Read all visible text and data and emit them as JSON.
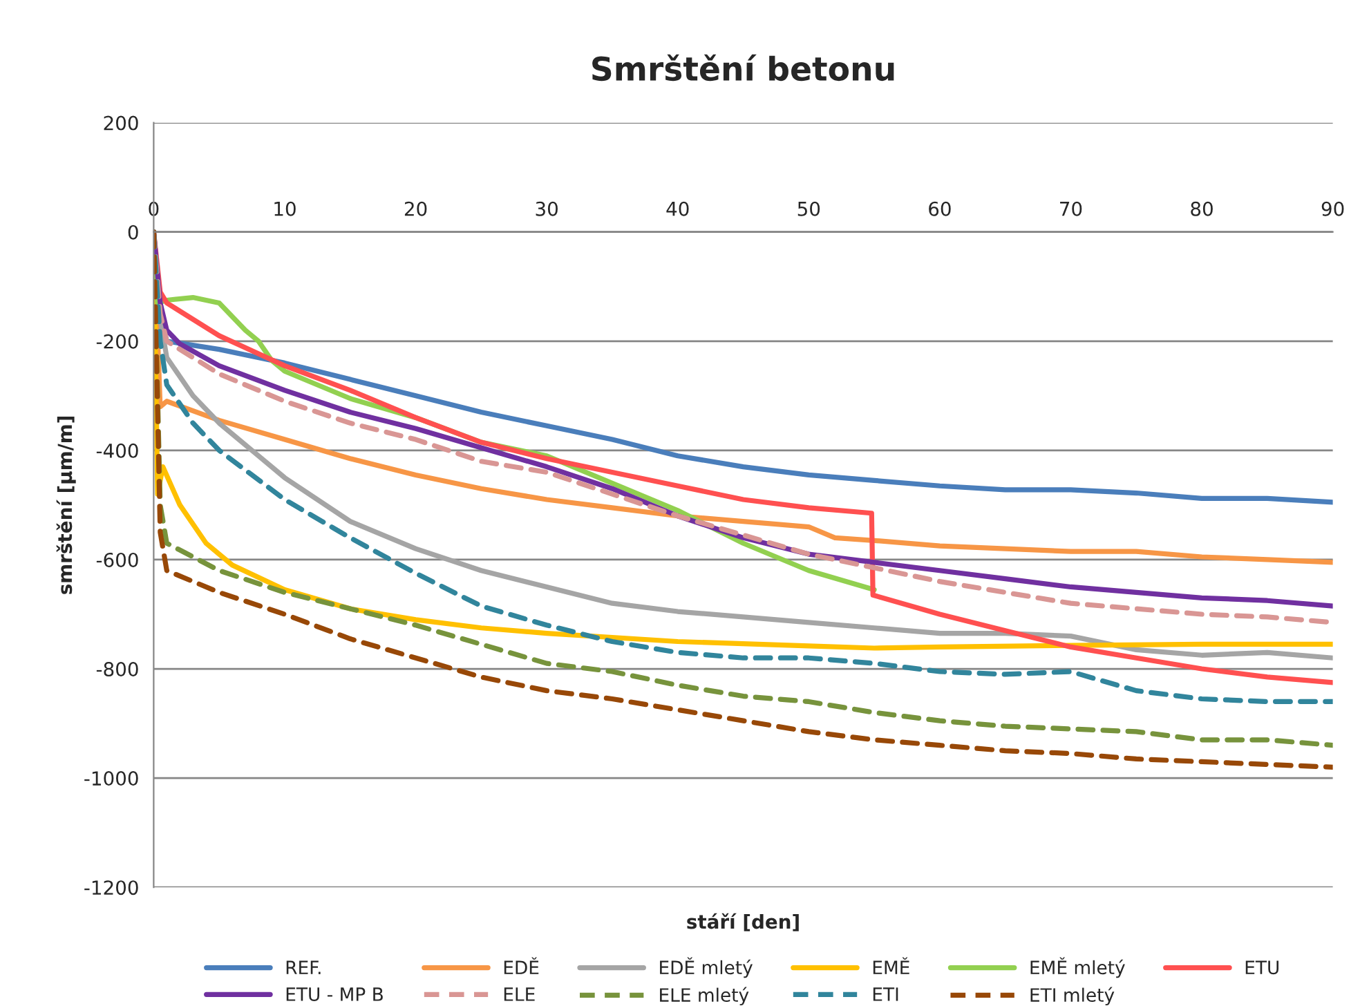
{
  "chart_data": {
    "type": "line",
    "title": "Smrštění betonu",
    "xlabel": "stáří [den]",
    "ylabel": "smrštění [µm/m]",
    "xlim": [
      0,
      90
    ],
    "xticks": [
      0,
      10,
      20,
      30,
      40,
      50,
      60,
      70,
      80,
      90
    ],
    "ylim": [
      -1200,
      200
    ],
    "yticks": [
      -1200,
      -1000,
      -800,
      -600,
      -400,
      -200,
      0,
      200
    ],
    "grid": "y",
    "legend": "bottom",
    "marker": "none",
    "series": [
      {
        "name": "REF.",
        "color": "#4a7ebb",
        "line_style": "solid",
        "x": [
          0,
          0.5,
          1,
          5,
          10,
          15,
          20,
          25,
          30,
          35,
          40,
          45,
          50,
          55,
          60,
          65,
          70,
          75,
          80,
          85,
          90
        ],
        "values": [
          0,
          -150,
          -200,
          -215,
          -240,
          -270,
          -300,
          -330,
          -355,
          -380,
          -410,
          -430,
          -445,
          -455,
          -465,
          -472,
          -472,
          -478,
          -488,
          -488,
          -495
        ]
      },
      {
        "name": "EDĚ",
        "color": "#f79646",
        "line_style": "solid",
        "x": [
          0,
          0.5,
          1,
          5,
          10,
          15,
          20,
          25,
          30,
          35,
          40,
          45,
          50,
          52,
          55,
          60,
          65,
          70,
          75,
          80,
          85,
          90
        ],
        "values": [
          0,
          -320,
          -310,
          -345,
          -380,
          -415,
          -445,
          -470,
          -490,
          -505,
          -520,
          -530,
          -540,
          -560,
          -565,
          -575,
          -580,
          -585,
          -585,
          -595,
          -600,
          -605
        ]
      },
      {
        "name": "EDĚ mletý",
        "color": "#a5a5a5",
        "line_style": "solid",
        "x": [
          0,
          0.5,
          1,
          3,
          5,
          8,
          10,
          15,
          20,
          25,
          30,
          35,
          40,
          45,
          50,
          55,
          60,
          65,
          70,
          75,
          80,
          85,
          90
        ],
        "values": [
          0,
          -160,
          -230,
          -300,
          -350,
          -410,
          -450,
          -530,
          -580,
          -620,
          -650,
          -680,
          -695,
          -705,
          -715,
          -725,
          -735,
          -735,
          -740,
          -765,
          -775,
          -770,
          -780
        ]
      },
      {
        "name": "EMĚ",
        "color": "#ffc000",
        "line_style": "solid",
        "x": [
          0,
          0.3,
          0.7,
          2,
          4,
          6,
          10,
          15,
          20,
          25,
          30,
          40,
          50,
          55,
          60,
          70,
          80,
          90
        ],
        "values": [
          0,
          -480,
          -430,
          -500,
          -570,
          -610,
          -655,
          -690,
          -710,
          -725,
          -735,
          -750,
          -758,
          -762,
          -760,
          -757,
          -755,
          -755
        ]
      },
      {
        "name": "EMĚ mletý",
        "color": "#92d050",
        "line_style": "solid",
        "x": [
          0,
          0.3,
          1,
          3,
          5,
          7,
          8,
          9,
          10,
          15,
          20,
          25,
          30,
          35,
          40,
          45,
          50,
          55
        ],
        "values": [
          0,
          -130,
          -125,
          -120,
          -130,
          -180,
          -200,
          -235,
          -255,
          -305,
          -340,
          -385,
          -410,
          -460,
          -510,
          -570,
          -620,
          -655
        ]
      },
      {
        "name": "ETU",
        "color": "#ff5050",
        "line_style": "solid",
        "x": [
          0,
          0.5,
          1,
          5,
          10,
          15,
          20,
          25,
          30,
          35,
          40,
          45,
          50,
          54.8,
          54.9,
          60,
          65,
          70,
          75,
          80,
          85,
          90
        ],
        "values": [
          0,
          -110,
          -130,
          -190,
          -245,
          -290,
          -340,
          -385,
          -415,
          -440,
          -465,
          -490,
          -505,
          -515,
          -665,
          -700,
          -730,
          -760,
          -780,
          -800,
          -815,
          -825
        ]
      },
      {
        "name": "ETU - MP B",
        "color": "#7030a0",
        "line_style": "solid",
        "x": [
          0,
          0.5,
          1,
          2,
          5,
          10,
          15,
          20,
          25,
          30,
          35,
          40,
          45,
          50,
          55,
          60,
          65,
          70,
          75,
          80,
          85,
          90
        ],
        "values": [
          0,
          -130,
          -180,
          -205,
          -245,
          -290,
          -330,
          -360,
          -395,
          -430,
          -470,
          -520,
          -560,
          -590,
          -605,
          -620,
          -635,
          -650,
          -660,
          -670,
          -675,
          -685
        ]
      },
      {
        "name": "ELE",
        "color": "#d99694",
        "line_style": "dashed",
        "x": [
          0,
          0.5,
          1,
          5,
          10,
          15,
          20,
          25,
          30,
          35,
          40,
          45,
          50,
          55,
          60,
          65,
          70,
          75,
          80,
          85,
          90
        ],
        "values": [
          0,
          -150,
          -200,
          -260,
          -310,
          -350,
          -380,
          -420,
          -440,
          -480,
          -520,
          -555,
          -590,
          -615,
          -640,
          -660,
          -680,
          -690,
          -700,
          -705,
          -715
        ]
      },
      {
        "name": "ELE mletý",
        "color": "#77933c",
        "line_style": "dashed",
        "x": [
          0,
          0.5,
          1,
          5,
          10,
          15,
          20,
          25,
          30,
          35,
          40,
          45,
          50,
          55,
          60,
          65,
          70,
          75,
          80,
          85,
          90
        ],
        "values": [
          0,
          -500,
          -570,
          -620,
          -660,
          -690,
          -720,
          -755,
          -790,
          -805,
          -830,
          -850,
          -860,
          -880,
          -895,
          -905,
          -910,
          -915,
          -930,
          -930,
          -940
        ]
      },
      {
        "name": "ETI",
        "color": "#31859c",
        "line_style": "dashed",
        "x": [
          0,
          0.5,
          1,
          3,
          5,
          10,
          15,
          20,
          25,
          30,
          35,
          40,
          45,
          50,
          55,
          60,
          65,
          70,
          75,
          80,
          85,
          90
        ],
        "values": [
          0,
          -200,
          -280,
          -350,
          -400,
          -490,
          -560,
          -625,
          -685,
          -720,
          -750,
          -770,
          -780,
          -780,
          -790,
          -805,
          -810,
          -805,
          -840,
          -855,
          -860,
          -860
        ]
      },
      {
        "name": "ETI mletý",
        "color": "#984807",
        "line_style": "dashed",
        "x": [
          0,
          0.5,
          1,
          5,
          10,
          15,
          20,
          25,
          30,
          35,
          40,
          45,
          50,
          55,
          60,
          65,
          70,
          75,
          80,
          85,
          90
        ],
        "values": [
          0,
          -550,
          -620,
          -660,
          -700,
          -745,
          -780,
          -815,
          -840,
          -855,
          -875,
          -895,
          -915,
          -930,
          -940,
          -950,
          -955,
          -965,
          -970,
          -975,
          -980
        ]
      }
    ]
  }
}
